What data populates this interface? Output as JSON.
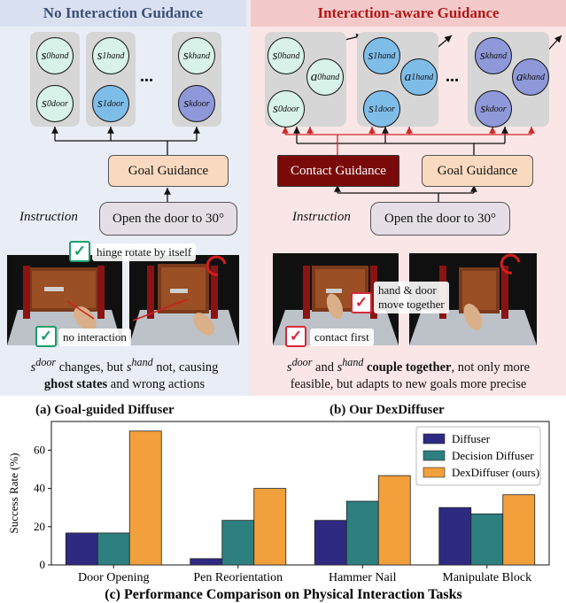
{
  "left_panel": {
    "title": "No Interaction Guidance",
    "goal_label": "Goal Guidance",
    "instruction_label": "Instruction",
    "instruction_text": "Open the door to 30°",
    "ellipsis": "...",
    "annot_top": "hinge rotate by itself",
    "annot_bottom": "no interaction",
    "caption_line1_pre": "changes, but",
    "caption_line1_post": "not, causing",
    "caption_line2_bold": "ghost states",
    "caption_line2_rest": "and wrong actions",
    "subcaption": "(a) Goal-guided Diffuser"
  },
  "right_panel": {
    "title": "Interaction-aware Guidance",
    "contact_label": "Contact Guidance",
    "goal_label": "Goal Guidance",
    "instruction_label": "Instruction",
    "instruction_text": "Open the door to 30°",
    "ellipsis": "...",
    "annot_move_1": "hand & door",
    "annot_move_2": "move together",
    "annot_contact": "contact first",
    "caption_and": "and",
    "caption_bold": "couple together",
    "caption_line1_rest": ", not only more",
    "caption_line2": "feasible, but adapts to new goals more precise",
    "subcaption": "(b) Our DexDiffuser"
  },
  "symbols": {
    "s": "s",
    "a": "a",
    "hand": "hand",
    "door": "door",
    "i0": "0",
    "i1": "1",
    "ik": "k",
    "check": "✓"
  },
  "colors": {
    "left_bg": "#e9edf6",
    "right_bg": "#fae6e6",
    "check_green": "#1a9c6a",
    "check_red": "#d8283a",
    "contact_box": "#7a0a0a",
    "goal_box": "#f9d9bf",
    "instr_box": "#e6dee6"
  },
  "chart_data": {
    "type": "bar",
    "title": "(c) Performance Comparison on Physical Interaction Tasks",
    "xlabel": "",
    "ylabel": "Success Rate (%)",
    "ylim": [
      0,
      75
    ],
    "yticks": [
      0,
      20,
      40,
      60
    ],
    "categories": [
      "Door Opening",
      "Pen Reorientation",
      "Hammer Nail",
      "Manipulate Block"
    ],
    "series": [
      {
        "name": "Diffuser",
        "color": "#2e2a82",
        "values": [
          16.7,
          3.3,
          23.3,
          30.0
        ]
      },
      {
        "name": "Decision Diffuser",
        "color": "#2e7f7f",
        "values": [
          16.7,
          23.3,
          33.3,
          26.7
        ]
      },
      {
        "name": "DexDiffuser (ours)",
        "color": "#f2a03c",
        "values": [
          70.0,
          40.0,
          46.7,
          36.7
        ]
      }
    ],
    "legend": "top-right",
    "grid": false
  }
}
